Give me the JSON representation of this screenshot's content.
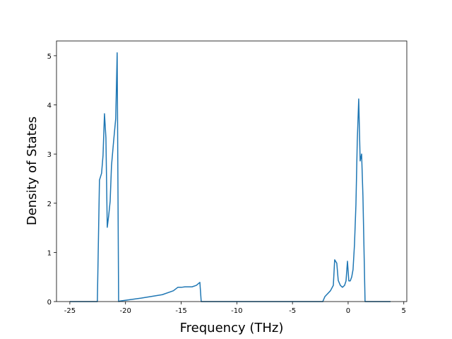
{
  "chart_data": {
    "type": "line",
    "x_label": "Frequency (THz)",
    "y_label": "Density of States",
    "x": [
      -25,
      -22.53,
      -22.34,
      -22.15,
      -22.02,
      -21.89,
      -21.76,
      -21.64,
      -21.51,
      -21.38,
      -21.26,
      -21.07,
      -20.88,
      -20.75,
      -20.62,
      -20.5,
      -18.6,
      -16.7,
      -15.7,
      -15.3,
      -14.97,
      -14.66,
      -14.02,
      -13.64,
      -13.32,
      -13.2,
      -2.28,
      -2.09,
      -1.59,
      -1.33,
      -1.21,
      -1.02,
      -0.89,
      -0.7,
      -0.51,
      -0.32,
      -0.19,
      -0.06,
      0.06,
      0.19,
      0.32,
      0.44,
      0.57,
      0.7,
      0.82,
      0.95,
      1.08,
      1.21,
      1.33,
      1.52,
      3.81
    ],
    "series": [
      {
        "color": "#1f77b4",
        "values": [
          0,
          0,
          2.47,
          2.61,
          2.97,
          3.82,
          3.33,
          1.51,
          1.75,
          2.04,
          2.76,
          3.26,
          3.72,
          5.06,
          0,
          0.01,
          0.07,
          0.14,
          0.22,
          0.29,
          0.29,
          0.3,
          0.3,
          0.33,
          0.39,
          0,
          0,
          0.1,
          0.22,
          0.33,
          0.85,
          0.78,
          0.43,
          0.33,
          0.29,
          0.33,
          0.42,
          0.82,
          0.42,
          0.42,
          0.5,
          0.65,
          1.16,
          1.97,
          3.26,
          4.12,
          2.86,
          3.0,
          2.14,
          0,
          0
        ]
      }
    ],
    "xlim": [
      -26.2,
      5.27
    ],
    "ylim": [
      0,
      5.3
    ],
    "xticks": [
      -25,
      -20,
      -15,
      -10,
      -5,
      0,
      5
    ],
    "yticks": [
      0,
      1,
      2,
      3,
      4,
      5
    ],
    "grid": false
  }
}
